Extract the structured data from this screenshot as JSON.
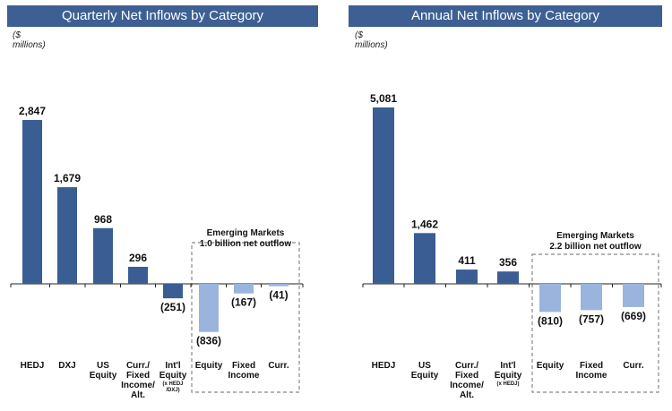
{
  "colors": {
    "header": "#3d5f93",
    "positive": "#3a5d93",
    "negative": "#9bb4dd",
    "box": "#888888"
  },
  "chart_data": [
    {
      "type": "bar",
      "title": "Quarterly Net Inflows by Category",
      "units": "($ millions)",
      "categories": [
        {
          "lines": [
            "HEDJ"
          ],
          "small": []
        },
        {
          "lines": [
            "DXJ"
          ],
          "small": []
        },
        {
          "lines": [
            "US",
            "Equity"
          ],
          "small": []
        },
        {
          "lines": [
            "Curr./",
            "Fixed",
            "Income/",
            "Alt."
          ],
          "small": []
        },
        {
          "lines": [
            "Int'l",
            "Equity"
          ],
          "small": [
            "(x HEDJ",
            "/DXJ)"
          ]
        },
        {
          "lines": [
            "Equity"
          ],
          "small": []
        },
        {
          "lines": [
            "Fixed",
            "Income"
          ],
          "small": []
        },
        {
          "lines": [
            "Curr."
          ],
          "small": []
        }
      ],
      "values": [
        2847,
        1679,
        968,
        296,
        -251,
        -836,
        -167,
        -41
      ],
      "value_labels": [
        "2,847",
        "1,679",
        "968",
        "296",
        "(251)",
        "(836)",
        "(167)",
        "(41)"
      ],
      "emerging": [
        5,
        6,
        7
      ],
      "annotation": [
        "Emerging Markets",
        "1.0 billion net outflow"
      ]
    },
    {
      "type": "bar",
      "title": "Annual Net Inflows by Category",
      "units": "($ millions)",
      "categories": [
        {
          "lines": [
            "HEDJ"
          ],
          "small": []
        },
        {
          "lines": [
            "US",
            "Equity"
          ],
          "small": []
        },
        {
          "lines": [
            "Curr./",
            "Fixed",
            "Income/",
            "Alt."
          ],
          "small": []
        },
        {
          "lines": [
            "Int'l",
            "Equity"
          ],
          "small": [
            "(x HEDJ)"
          ]
        },
        {
          "lines": [
            "Equity"
          ],
          "small": []
        },
        {
          "lines": [
            "Fixed",
            "Income"
          ],
          "small": []
        },
        {
          "lines": [
            "Curr."
          ],
          "small": []
        }
      ],
      "values": [
        5081,
        1462,
        411,
        356,
        -810,
        -757,
        -669
      ],
      "value_labels": [
        "5,081",
        "1,462",
        "411",
        "356",
        "(810)",
        "(757)",
        "(669)"
      ],
      "emerging": [
        4,
        5,
        6
      ],
      "annotation": [
        "Emerging Markets",
        "2.2 billion net outflow"
      ]
    }
  ]
}
